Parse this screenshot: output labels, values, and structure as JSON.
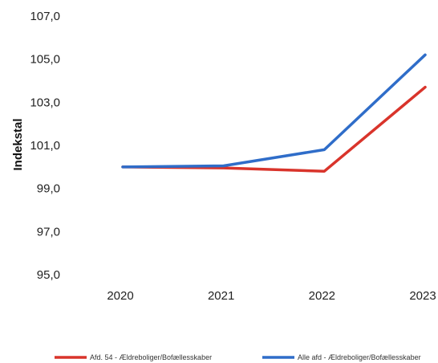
{
  "chart_data": {
    "type": "line",
    "title": "",
    "xlabel": "",
    "ylabel": "Indekstal",
    "categories": [
      "2020",
      "2021",
      "2022",
      "2023"
    ],
    "ylim": [
      95.0,
      107.0
    ],
    "yticks": [
      "95,0",
      "97,0",
      "99,0",
      "101,0",
      "103,0",
      "105,0",
      "107,0"
    ],
    "grid": false,
    "legend_position": "bottom",
    "series": [
      {
        "name": "Afd. 54 - Ældreboliger/Bofællesskaber",
        "color": "#d9342b",
        "values": [
          100.0,
          99.95,
          99.8,
          103.7
        ]
      },
      {
        "name": "Alle afd - Ældreboliger/Bofællesskaber",
        "color": "#2f6dc9",
        "values": [
          100.0,
          100.05,
          100.8,
          105.2
        ]
      }
    ]
  }
}
